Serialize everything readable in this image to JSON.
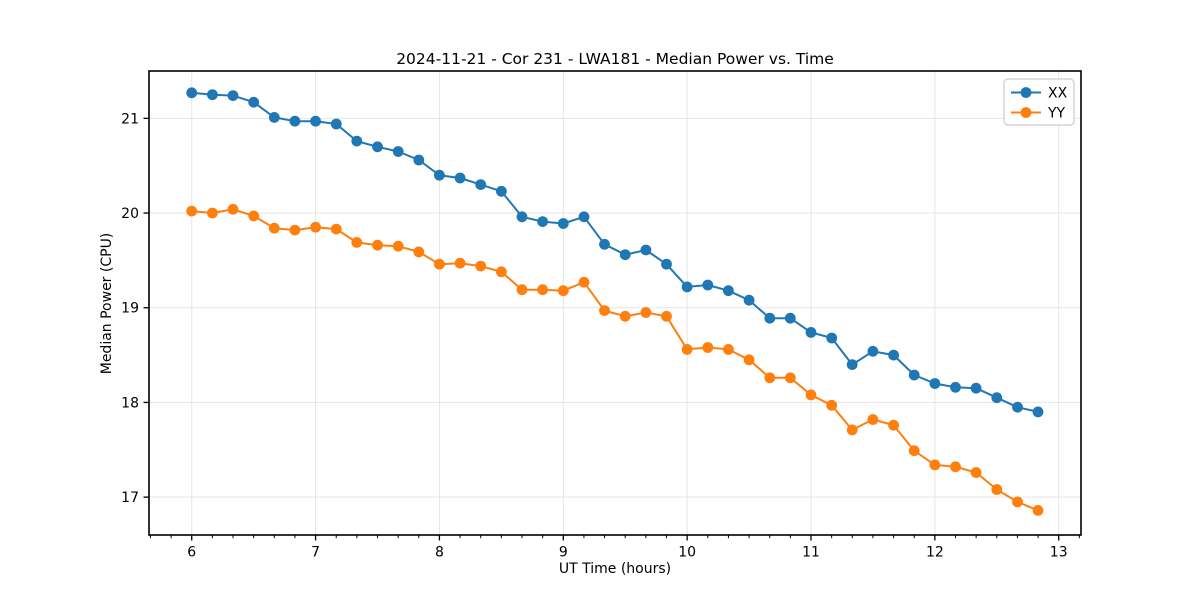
{
  "chart_data": {
    "type": "line",
    "title": "2024-11-21 - Cor 231 - LWA181 - Median Power vs. Time",
    "xlabel": "UT Time (hours)",
    "ylabel": "Median Power (CPU)",
    "xlim": [
      5.655,
      13.18
    ],
    "ylim": [
      16.6,
      21.5
    ],
    "xticks": [
      6,
      7,
      8,
      9,
      10,
      11,
      12,
      13
    ],
    "yticks": [
      17,
      18,
      19,
      20,
      21
    ],
    "x_minor_step": 0.16667,
    "grid": true,
    "grid_color": "#e5e5e5",
    "axis_color": "#000000",
    "background_color": "#ffffff",
    "legend": {
      "position": "upper-right",
      "entries": [
        "XX",
        "YY"
      ]
    },
    "x": [
      6,
      6.167,
      6.333,
      6.5,
      6.667,
      6.833,
      7,
      7.167,
      7.333,
      7.5,
      7.667,
      7.833,
      8,
      8.167,
      8.333,
      8.5,
      8.667,
      8.833,
      9,
      9.167,
      9.333,
      9.5,
      9.667,
      9.833,
      10,
      10.167,
      10.333,
      10.5,
      10.667,
      10.833,
      11,
      11.167,
      11.333,
      11.5,
      11.667,
      11.833,
      12,
      12.167,
      12.333,
      12.5,
      12.667,
      12.833
    ],
    "series": [
      {
        "name": "XX",
        "color": "#1f77b4",
        "marker": "circle",
        "values": [
          21.27,
          21.25,
          21.24,
          21.17,
          21.01,
          20.97,
          20.97,
          20.94,
          20.76,
          20.7,
          20.65,
          20.56,
          20.4,
          20.37,
          20.3,
          20.23,
          19.96,
          19.91,
          19.89,
          19.96,
          19.67,
          19.56,
          19.61,
          19.46,
          19.22,
          19.24,
          19.18,
          19.08,
          18.89,
          18.89,
          18.74,
          18.68,
          18.4,
          18.54,
          18.5,
          18.29,
          18.2,
          18.16,
          18.15,
          18.05,
          17.95,
          17.9
        ]
      },
      {
        "name": "YY",
        "color": "#ff7f0e",
        "marker": "circle",
        "values": [
          20.02,
          20.0,
          20.04,
          19.97,
          19.84,
          19.82,
          19.85,
          19.83,
          19.69,
          19.66,
          19.65,
          19.59,
          19.46,
          19.47,
          19.44,
          19.38,
          19.19,
          19.19,
          19.18,
          19.27,
          18.97,
          18.91,
          18.95,
          18.91,
          18.56,
          18.58,
          18.56,
          18.45,
          18.26,
          18.26,
          18.08,
          17.97,
          17.71,
          17.82,
          17.76,
          17.49,
          17.34,
          17.32,
          17.26,
          17.08,
          16.95,
          16.86
        ]
      }
    ]
  }
}
